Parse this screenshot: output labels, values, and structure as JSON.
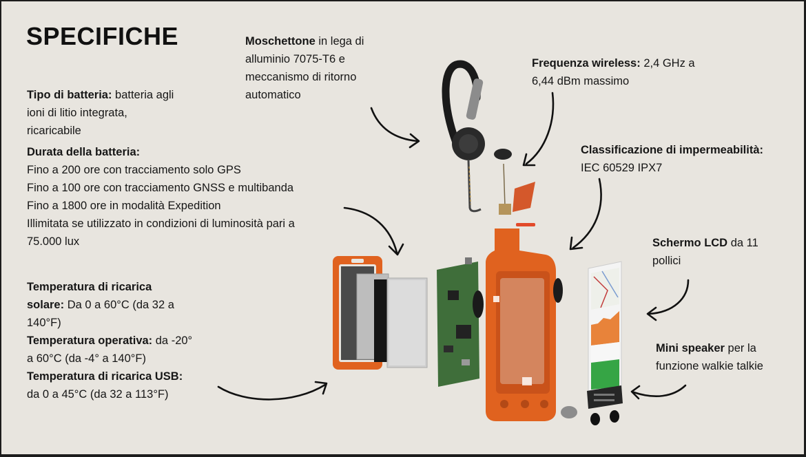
{
  "title": "SPECIFICHE",
  "labels": {
    "carabiner_bold": "Moschettone",
    "carabiner_l1": " in lega di",
    "carabiner_l2": "alluminio 7075-T6 e",
    "carabiner_l3": "meccanismo di ritorno",
    "carabiner_l4": "automatico",
    "wireless_bold": "Frequenza wireless:",
    "wireless_l1": " 2,4 GHz a",
    "wireless_l2": "6,44 dBm massimo",
    "waterproof_bold": "Classificazione di impermeabilità:",
    "waterproof_l1": "IEC 60529 IPX7",
    "battery_type_bold": "Tipo di batteria:",
    "battery_type_l1": " batteria agli",
    "battery_type_l2": "ioni di litio integrata,",
    "battery_type_l3": "ricaricabile",
    "battery_life_bold": "Durata della batteria:",
    "battery_life_l1": "Fino a 200 ore con tracciamento solo GPS",
    "battery_life_l2": "Fino a 100 ore con tracciamento GNSS e multibanda",
    "battery_life_l3": "Fino a 1800 ore in modalità Expedition",
    "battery_life_l4": "Illimitata se utilizzato in condizioni di luminosità pari a",
    "battery_life_l5": "75.000 lux",
    "screen_bold": "Schermo LCD",
    "screen_l1": " da 11",
    "screen_l2": "pollici",
    "speaker_bold": "Mini speaker",
    "speaker_l1": " per la",
    "speaker_l2": "funzione walkie talkie",
    "solar_bold1": "Temperatura di ricarica",
    "solar_bold2": "solare:",
    "solar_l1": " Da 0 a 60°C (da 32 a",
    "solar_l2": "140°F)",
    "operating_bold": "Temperatura operativa:",
    "operating_l1": " da -20°",
    "operating_l2": "a 60°C (da -4° a 140°F)",
    "usb_bold": "Temperatura di ricarica USB:",
    "usb_l1": "da 0 a 45°C (da 32 a 113°F)"
  },
  "colors": {
    "background": "#e8e5df",
    "frame": "#1c1c1c",
    "text": "#161616",
    "device_orange": "#e0621f",
    "pcb_green": "#3f6e3a",
    "screen_green": "#36a545"
  }
}
